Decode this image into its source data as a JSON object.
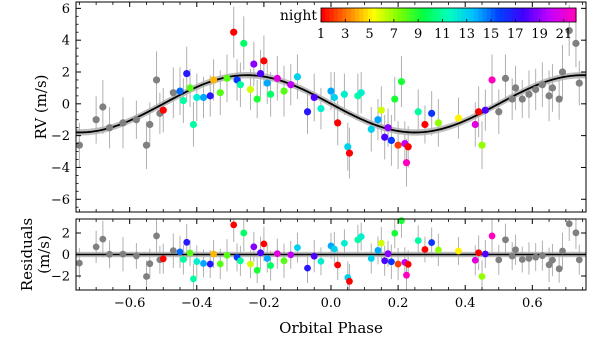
{
  "chart_data": [
    {
      "type": "scatter",
      "role": "rv-panel",
      "ylabel": "RV (m/s)",
      "xlim": [
        -0.76,
        0.76
      ],
      "ylim": [
        -6.8,
        6.4
      ],
      "yticks": [
        -6,
        -4,
        -2,
        0,
        2,
        4,
        6
      ],
      "ytick_labels": [
        "−6",
        "−4",
        "−2",
        "0",
        "2",
        "4",
        "6"
      ],
      "grid": false,
      "model": {
        "amplitude": 1.8,
        "peak_phase": -0.25,
        "band_halfwidth": 0.2,
        "color": "#000000",
        "band_color": "#bdbdbd"
      },
      "colorbar": {
        "label": "night",
        "placement": "top-right",
        "min": 1,
        "max": 22,
        "tick_values": [
          1,
          3,
          5,
          7,
          9,
          11,
          13,
          15,
          17,
          19,
          21
        ],
        "tick_labels": [
          "1",
          "3",
          "5",
          "7",
          "9",
          "11",
          "13",
          "15",
          "17",
          "19",
          "21"
        ],
        "colors": [
          "#ff0000",
          "#ff8000",
          "#ffff00",
          "#80ff00",
          "#00ff40",
          "#00ffbf",
          "#00bfff",
          "#0040ff",
          "#4000ff",
          "#bf00ff",
          "#ff00bf"
        ]
      },
      "unbinned_color": "#808080",
      "errorbar_color": "#b0b0b0",
      "points": [
        {
          "x": -0.75,
          "y": -2.6,
          "err": 1.4,
          "night": 0
        },
        {
          "x": -0.7,
          "y": -1.0,
          "err": 1.5,
          "night": 0
        },
        {
          "x": -0.68,
          "y": -0.2,
          "err": 1.7,
          "night": 0
        },
        {
          "x": -0.66,
          "y": -1.5,
          "err": 1.3,
          "night": 0
        },
        {
          "x": -0.62,
          "y": -1.2,
          "err": 1.6,
          "night": 0
        },
        {
          "x": -0.58,
          "y": -1.0,
          "err": 1.2,
          "night": 0
        },
        {
          "x": -0.55,
          "y": -2.6,
          "err": 1.5,
          "night": 0
        },
        {
          "x": -0.54,
          "y": -1.3,
          "err": 1.4,
          "night": 0
        },
        {
          "x": -0.52,
          "y": 1.5,
          "err": 1.8,
          "night": 0
        },
        {
          "x": -0.51,
          "y": -0.6,
          "err": 1.3,
          "night": 0
        },
        {
          "x": -0.5,
          "y": -0.4,
          "err": 1.4,
          "night": 1
        },
        {
          "x": -0.47,
          "y": 0.7,
          "err": 1.6,
          "night": 0
        },
        {
          "x": -0.45,
          "y": 0.8,
          "err": 1.5,
          "night": 15
        },
        {
          "x": -0.44,
          "y": 0.2,
          "err": 1.4,
          "night": 11
        },
        {
          "x": -0.43,
          "y": 1.9,
          "err": 1.7,
          "night": 17
        },
        {
          "x": -0.42,
          "y": 1.0,
          "err": 1.2,
          "night": 8
        },
        {
          "x": -0.41,
          "y": -1.3,
          "err": 1.4,
          "night": 11
        },
        {
          "x": -0.4,
          "y": 0.4,
          "err": 1.5,
          "night": 12
        },
        {
          "x": -0.38,
          "y": 0.4,
          "err": 1.3,
          "night": 14
        },
        {
          "x": -0.36,
          "y": 0.5,
          "err": 1.3,
          "night": 17
        },
        {
          "x": -0.35,
          "y": 1.5,
          "err": 1.3,
          "night": 4
        },
        {
          "x": -0.33,
          "y": 0.7,
          "err": 1.4,
          "night": 8
        },
        {
          "x": -0.31,
          "y": 1.6,
          "err": 1.5,
          "night": 8
        },
        {
          "x": -0.29,
          "y": 4.5,
          "err": 1.6,
          "night": 1
        },
        {
          "x": -0.28,
          "y": 1.5,
          "err": 1.3,
          "night": 16
        },
        {
          "x": -0.27,
          "y": 1.2,
          "err": 1.4,
          "night": 11
        },
        {
          "x": -0.26,
          "y": 3.8,
          "err": 1.7,
          "night": 10
        },
        {
          "x": -0.24,
          "y": 0.9,
          "err": 1.3,
          "night": 6
        },
        {
          "x": -0.23,
          "y": 2.5,
          "err": 1.4,
          "night": 19
        },
        {
          "x": -0.22,
          "y": 0.3,
          "err": 1.2,
          "night": 9
        },
        {
          "x": -0.21,
          "y": 1.9,
          "err": 1.5,
          "night": 18
        },
        {
          "x": -0.2,
          "y": 2.7,
          "err": 1.6,
          "night": 1
        },
        {
          "x": -0.19,
          "y": 1.3,
          "err": 1.3,
          "night": 14
        },
        {
          "x": -0.18,
          "y": 0.6,
          "err": 1.4,
          "night": 10
        },
        {
          "x": -0.16,
          "y": 1.6,
          "err": 1.4,
          "night": 21
        },
        {
          "x": -0.14,
          "y": 0.8,
          "err": 1.6,
          "night": 8
        },
        {
          "x": -0.12,
          "y": 1.2,
          "err": 1.3,
          "night": 20
        },
        {
          "x": -0.1,
          "y": 1.7,
          "err": 1.4,
          "night": 13
        },
        {
          "x": -0.07,
          "y": -0.5,
          "err": 1.4,
          "night": 17
        },
        {
          "x": -0.05,
          "y": 0.4,
          "err": 1.5,
          "night": 18
        },
        {
          "x": -0.03,
          "y": -0.3,
          "err": 1.3,
          "night": 12
        },
        {
          "x": 0.0,
          "y": 0.8,
          "err": 1.2,
          "night": 14
        },
        {
          "x": 0.01,
          "y": 0.4,
          "err": 1.6,
          "night": 13
        },
        {
          "x": 0.02,
          "y": -1.2,
          "err": 1.4,
          "night": 1
        },
        {
          "x": 0.04,
          "y": 0.6,
          "err": 1.3,
          "night": 12
        },
        {
          "x": 0.05,
          "y": -2.7,
          "err": 1.5,
          "night": 13
        },
        {
          "x": 0.055,
          "y": -3.1,
          "err": 1.6,
          "night": 1
        },
        {
          "x": 0.08,
          "y": 0.5,
          "err": 1.4,
          "night": 11
        },
        {
          "x": 0.09,
          "y": 0.7,
          "err": 1.3,
          "night": 12
        },
        {
          "x": 0.12,
          "y": -1.6,
          "err": 1.4,
          "night": 13
        },
        {
          "x": 0.14,
          "y": -1.0,
          "err": 1.3,
          "night": 14
        },
        {
          "x": 0.15,
          "y": -0.4,
          "err": 1.5,
          "night": 6
        },
        {
          "x": 0.16,
          "y": -2.1,
          "err": 1.4,
          "night": 18
        },
        {
          "x": 0.17,
          "y": -1.5,
          "err": 1.2,
          "night": 19
        },
        {
          "x": 0.18,
          "y": -2.3,
          "err": 1.6,
          "night": 16
        },
        {
          "x": 0.19,
          "y": 0.3,
          "err": 1.4,
          "night": 9
        },
        {
          "x": 0.2,
          "y": -2.6,
          "err": 1.5,
          "night": 2
        },
        {
          "x": 0.21,
          "y": 1.4,
          "err": 1.6,
          "night": 9
        },
        {
          "x": 0.22,
          "y": -2.5,
          "err": 1.4,
          "night": 20
        },
        {
          "x": 0.225,
          "y": -3.7,
          "err": 1.5,
          "night": 22
        },
        {
          "x": 0.23,
          "y": -2.7,
          "err": 1.3,
          "night": 1
        },
        {
          "x": 0.26,
          "y": -0.5,
          "err": 1.4,
          "night": 11
        },
        {
          "x": 0.28,
          "y": -1.3,
          "err": 1.2,
          "night": 1
        },
        {
          "x": 0.3,
          "y": -0.6,
          "err": 1.4,
          "night": 16
        },
        {
          "x": 0.32,
          "y": -1.2,
          "err": 1.5,
          "night": 7
        },
        {
          "x": 0.38,
          "y": -0.9,
          "err": 1.3,
          "night": 5
        },
        {
          "x": 0.43,
          "y": -1.3,
          "err": 1.4,
          "night": 21
        },
        {
          "x": 0.44,
          "y": -0.5,
          "err": 1.6,
          "night": 1
        },
        {
          "x": 0.45,
          "y": -2.6,
          "err": 1.5,
          "night": 7
        },
        {
          "x": 0.46,
          "y": -0.4,
          "err": 1.3,
          "night": 18
        },
        {
          "x": 0.48,
          "y": 1.5,
          "err": 1.6,
          "night": 22
        },
        {
          "x": 0.5,
          "y": -0.5,
          "err": 1.4,
          "night": 0
        },
        {
          "x": 0.52,
          "y": 1.6,
          "err": 1.5,
          "night": 0
        },
        {
          "x": 0.54,
          "y": 0.3,
          "err": 1.3,
          "night": 0
        },
        {
          "x": 0.55,
          "y": 1.0,
          "err": 1.4,
          "night": 0
        },
        {
          "x": 0.57,
          "y": 0.3,
          "err": 1.2,
          "night": 0
        },
        {
          "x": 0.59,
          "y": 0.6,
          "err": 1.5,
          "night": 0
        },
        {
          "x": 0.61,
          "y": 0.9,
          "err": 1.3,
          "night": 0
        },
        {
          "x": 0.63,
          "y": 1.2,
          "err": 1.4,
          "night": 0
        },
        {
          "x": 0.65,
          "y": 0.5,
          "err": 1.6,
          "night": 0
        },
        {
          "x": 0.66,
          "y": 1.0,
          "err": 1.5,
          "night": 0
        },
        {
          "x": 0.68,
          "y": 0.3,
          "err": 1.3,
          "night": 0
        },
        {
          "x": 0.69,
          "y": 2.0,
          "err": 1.7,
          "night": 0
        },
        {
          "x": 0.71,
          "y": 4.6,
          "err": 1.6,
          "night": 0
        },
        {
          "x": 0.73,
          "y": 3.8,
          "err": 1.5,
          "night": 0
        },
        {
          "x": 0.74,
          "y": 1.3,
          "err": 1.4,
          "night": 0
        }
      ]
    },
    {
      "type": "scatter",
      "role": "residuals-panel",
      "xlabel": "Orbital Phase",
      "ylabel": "Residuals (m/s)",
      "ylabel_lines": [
        "Residuals",
        "(m/s)"
      ],
      "xlim": [
        -0.76,
        0.76
      ],
      "ylim": [
        -3.3,
        3.3
      ],
      "xticks": [
        -0.6,
        -0.4,
        -0.2,
        0.0,
        0.2,
        0.4,
        0.6
      ],
      "xtick_labels": [
        "−0.6",
        "−0.4",
        "−0.2",
        "0.0",
        "0.2",
        "0.4",
        "0.6"
      ],
      "yticks": [
        -2,
        0,
        2
      ],
      "ytick_labels": [
        "−2",
        "0",
        "2"
      ],
      "grid": false,
      "zero_line": true
    }
  ]
}
